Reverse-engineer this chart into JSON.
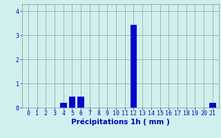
{
  "categories": [
    0,
    1,
    2,
    3,
    4,
    5,
    6,
    7,
    8,
    9,
    10,
    11,
    12,
    13,
    14,
    15,
    16,
    17,
    18,
    19,
    20,
    21
  ],
  "values": [
    0,
    0,
    0,
    0,
    0.2,
    0.45,
    0.45,
    0,
    0,
    0,
    0,
    0,
    3.45,
    0,
    0,
    0,
    0,
    0,
    0,
    0,
    0,
    0.2
  ],
  "bar_color": "#0505cc",
  "background_color": "#cff0ee",
  "grid_color": "#a09898",
  "axis_color": "#0000bb",
  "xlabel": "Précipitations 1h ( mm )",
  "ylim": [
    0,
    4.3
  ],
  "yticks": [
    0,
    1,
    2,
    3,
    4
  ],
  "xlabel_fontsize": 7.5,
  "tick_fontsize": 6.0
}
